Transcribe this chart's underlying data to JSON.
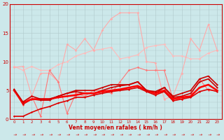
{
  "xlabel": "Vent moyen/en rafales ( km/h )",
  "bg_color": "#cce8ea",
  "grid_color": "#b0c8ca",
  "ylim": [
    0,
    20
  ],
  "xlim": [
    -0.5,
    23.5
  ],
  "yticks": [
    0,
    5,
    10,
    15,
    20
  ],
  "series": [
    {
      "y": [
        9.2,
        8.5,
        9.2,
        8.5,
        8.5,
        9.5,
        10.0,
        11.0,
        11.5,
        12.0,
        12.2,
        12.5,
        10.5,
        10.8,
        11.2,
        12.5,
        12.8,
        13.0,
        11.0,
        11.0,
        10.5,
        10.5,
        11.5,
        12.0
      ],
      "color": "#ffbbbb",
      "lw": 0.8,
      "ms": 1.8
    },
    {
      "y": [
        9.0,
        9.2,
        4.0,
        8.0,
        8.0,
        6.5,
        13.0,
        12.0,
        14.0,
        12.0,
        15.5,
        17.5,
        18.5,
        18.5,
        18.5,
        10.0,
        9.8,
        3.5,
        4.0,
        8.0,
        14.0,
        12.0,
        16.5,
        12.0
      ],
      "color": "#ffaaaa",
      "lw": 0.8,
      "ms": 1.8
    },
    {
      "y": [
        5.0,
        2.5,
        4.0,
        0.5,
        8.5,
        6.5,
        1.0,
        4.5,
        4.0,
        5.0,
        5.0,
        4.5,
        6.5,
        8.5,
        9.0,
        8.5,
        8.5,
        8.5,
        3.5,
        3.5,
        4.0,
        7.0,
        5.0,
        5.0
      ],
      "color": "#ff7777",
      "lw": 0.8,
      "ms": 1.8
    },
    {
      "y": [
        5.2,
        2.6,
        3.5,
        3.3,
        3.3,
        4.0,
        4.5,
        4.8,
        4.5,
        4.5,
        5.0,
        5.5,
        5.8,
        6.0,
        6.5,
        5.0,
        4.5,
        5.5,
        3.8,
        4.0,
        4.5,
        6.5,
        7.0,
        5.5
      ],
      "color": "#cc0000",
      "lw": 1.2,
      "ms": 1.5
    },
    {
      "y": [
        5.0,
        2.8,
        3.5,
        3.5,
        3.5,
        3.8,
        4.0,
        4.2,
        4.5,
        4.5,
        4.8,
        5.0,
        5.2,
        5.5,
        5.8,
        5.0,
        4.5,
        5.0,
        3.5,
        3.8,
        4.0,
        5.5,
        6.0,
        5.0
      ],
      "color": "#ff0000",
      "lw": 1.8,
      "ms": 1.5
    },
    {
      "y": [
        5.2,
        3.0,
        4.0,
        3.5,
        3.5,
        4.0,
        4.5,
        5.0,
        5.0,
        5.0,
        5.5,
        6.0,
        6.0,
        6.0,
        6.5,
        5.0,
        4.8,
        5.5,
        4.0,
        4.5,
        5.0,
        7.0,
        7.5,
        6.0
      ],
      "color": "#cc0000",
      "lw": 1.2,
      "ms": 1.5
    },
    {
      "y": [
        0.5,
        0.5,
        1.2,
        1.8,
        2.2,
        2.8,
        3.2,
        3.8,
        3.8,
        4.2,
        4.5,
        4.8,
        5.0,
        5.2,
        5.5,
        4.8,
        4.2,
        4.8,
        3.2,
        3.5,
        3.8,
        4.8,
        5.2,
        4.8
      ],
      "color": "#dd0000",
      "lw": 1.2,
      "ms": 1.5
    }
  ]
}
